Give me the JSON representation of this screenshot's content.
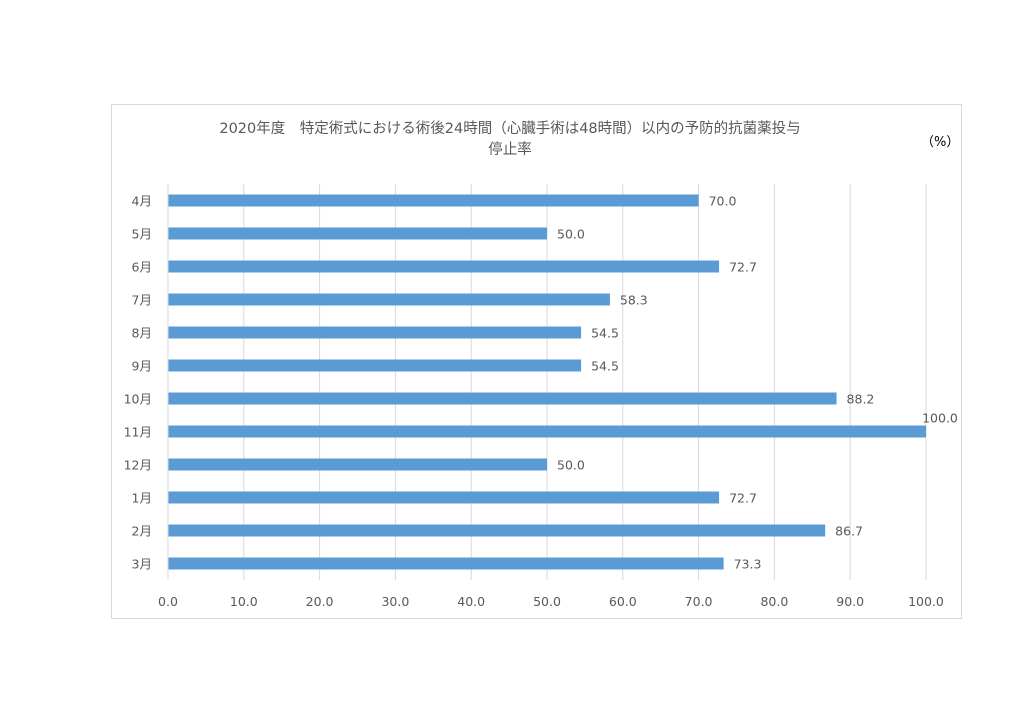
{
  "chart_data": {
    "type": "bar",
    "orientation": "horizontal",
    "title": "2020年度　特定術式における術後24時間（心臓手術は48時間）以内の予防的抗菌薬投与停止率",
    "title_lines": [
      "2020年度　特定術式における術後24時間（心臓手術は48時間）以内の予防的抗菌薬投与",
      "停止率"
    ],
    "unit_label": "（%）",
    "categories": [
      "4月",
      "5月",
      "6月",
      "7月",
      "8月",
      "9月",
      "10月",
      "11月",
      "12月",
      "1月",
      "2月",
      "3月"
    ],
    "values": [
      70.0,
      50.0,
      72.7,
      58.3,
      54.5,
      54.5,
      88.2,
      100.0,
      50.0,
      72.7,
      86.7,
      73.3
    ],
    "data_labels": [
      "70.0",
      "50.0",
      "72.7",
      "58.3",
      "54.5",
      "54.5",
      "88.2",
      "100.0",
      "50.0",
      "72.7",
      "86.7",
      "73.3"
    ],
    "x_ticks": [
      "0.0",
      "10.0",
      "20.0",
      "30.0",
      "40.0",
      "50.0",
      "60.0",
      "70.0",
      "80.0",
      "90.0",
      "100.0"
    ],
    "xlim": [
      0,
      100
    ],
    "grid": true,
    "bar_color": "#5b9bd5",
    "grid_color": "#d9d9d9",
    "text_color": "#595959"
  }
}
